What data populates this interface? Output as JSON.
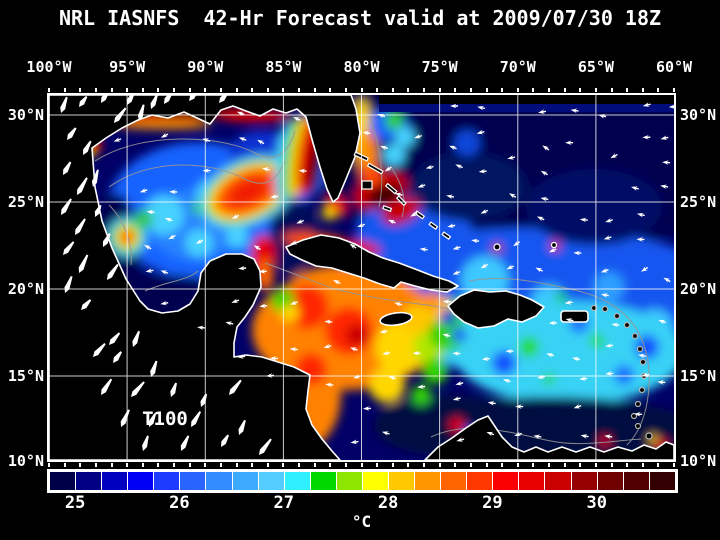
{
  "title": "NRL IASNFS  42-Hr Forecast valid at 2009/07/30 18Z",
  "axes": {
    "lon_labels": [
      "100°W",
      "95°W",
      "90°W",
      "85°W",
      "80°W",
      "75°W",
      "70°W",
      "65°W",
      "60°W"
    ],
    "lat_labels": [
      "30°N",
      "25°N",
      "20°N",
      "15°N",
      "10°N"
    ]
  },
  "map": {
    "field_label": "T100"
  },
  "colorbar": {
    "unit": "°C",
    "tick_labels": [
      "25",
      "26",
      "27",
      "28",
      "29",
      "30"
    ],
    "cell_colors": [
      "#000048",
      "#000084",
      "#0000c0",
      "#0000f6",
      "#1e3cff",
      "#2a64ff",
      "#328cff",
      "#3cabff",
      "#55ccff",
      "#30f0ff",
      "#00d800",
      "#8ee600",
      "#ffff00",
      "#ffc800",
      "#ff9600",
      "#ff6400",
      "#ff3700",
      "#fa0000",
      "#e60000",
      "#c80000",
      "#960000",
      "#6e0000",
      "#500000",
      "#320000"
    ]
  },
  "colors": {
    "background": "#000000",
    "text": "#ffffff",
    "ocean_deep": "#000066",
    "grid_line": "#ffffff",
    "coastline": "#ffffff",
    "bathymetry_contour": "#969696"
  }
}
